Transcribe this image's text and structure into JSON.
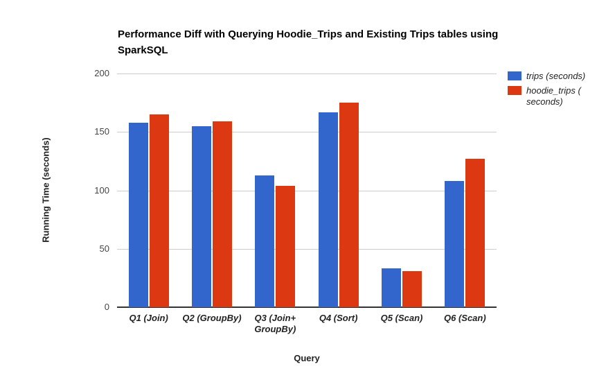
{
  "chart_data": {
    "type": "bar",
    "title": "Performance Diff with Querying Hoodie_Trips and Existing Trips tables using SparkSQL",
    "xlabel": "Query",
    "ylabel": "Running Time (seconds)",
    "ylim": [
      0,
      200
    ],
    "yticks": [
      0,
      50,
      100,
      150,
      200
    ],
    "grid": true,
    "legend_position": "right",
    "categories": [
      "Q1 (Join)",
      "Q2 (GroupBy)",
      "Q3 (Join+ GroupBy)",
      "Q4 (Sort)",
      "Q5 (Scan)",
      "Q6 (Scan)"
    ],
    "series": [
      {
        "name": "trips (seconds)",
        "color": "#3366CC",
        "values": [
          158,
          155,
          113,
          167,
          33,
          108
        ]
      },
      {
        "name": "hoodie_trips ( seconds)",
        "color": "#DC3912",
        "values": [
          165,
          159,
          104,
          175,
          31,
          127
        ]
      }
    ]
  }
}
